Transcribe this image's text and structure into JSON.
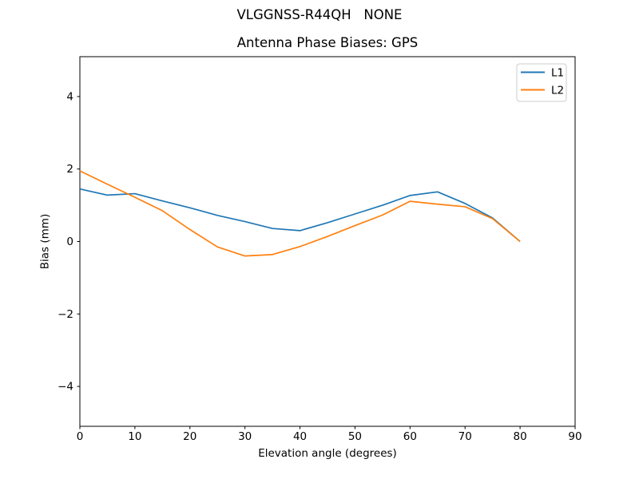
{
  "figure": {
    "title": "VLGGNSS-R44QH   NONE",
    "axes_title": "Antenna Phase Biases: GPS"
  },
  "chart_data": {
    "type": "line",
    "title": "VLGGNSS-R44QH   NONE",
    "subtitle": "Antenna Phase Biases: GPS",
    "xlabel": "Elevation angle (degrees)",
    "ylabel": "Bias (mm)",
    "xlim": [
      0,
      90
    ],
    "ylim": [
      -5.1,
      5.1
    ],
    "grid": false,
    "xticks": {
      "values": [
        0,
        10,
        20,
        30,
        40,
        50,
        60,
        70,
        80,
        90
      ],
      "labels": [
        "0",
        "10",
        "20",
        "30",
        "40",
        "50",
        "60",
        "70",
        "80",
        "90"
      ]
    },
    "yticks": {
      "values": [
        -4,
        -2,
        0,
        2,
        4
      ],
      "labels": [
        "−4",
        "−2",
        "0",
        "2",
        "4"
      ]
    },
    "x": [
      0,
      5,
      10,
      15,
      20,
      25,
      30,
      35,
      40,
      45,
      50,
      55,
      60,
      65,
      70,
      75,
      80
    ],
    "series": [
      {
        "name": "L1",
        "color": "#1f77b4",
        "values": [
          1.45,
          1.28,
          1.32,
          1.12,
          0.93,
          0.72,
          0.55,
          0.36,
          0.3,
          0.52,
          0.76,
          1.0,
          1.27,
          1.37,
          1.05,
          0.65,
          0.0
        ]
      },
      {
        "name": "L2",
        "color": "#ff7f0e",
        "values": [
          1.95,
          1.58,
          1.22,
          0.85,
          0.33,
          -0.15,
          -0.4,
          -0.36,
          -0.14,
          0.14,
          0.44,
          0.73,
          1.11,
          1.03,
          0.96,
          0.63,
          0.0
        ]
      }
    ],
    "legend": {
      "position": "upper right",
      "entries": [
        "L1",
        "L2"
      ]
    },
    "axis_color": "#000000",
    "legend_border_color": "#cccccc"
  }
}
